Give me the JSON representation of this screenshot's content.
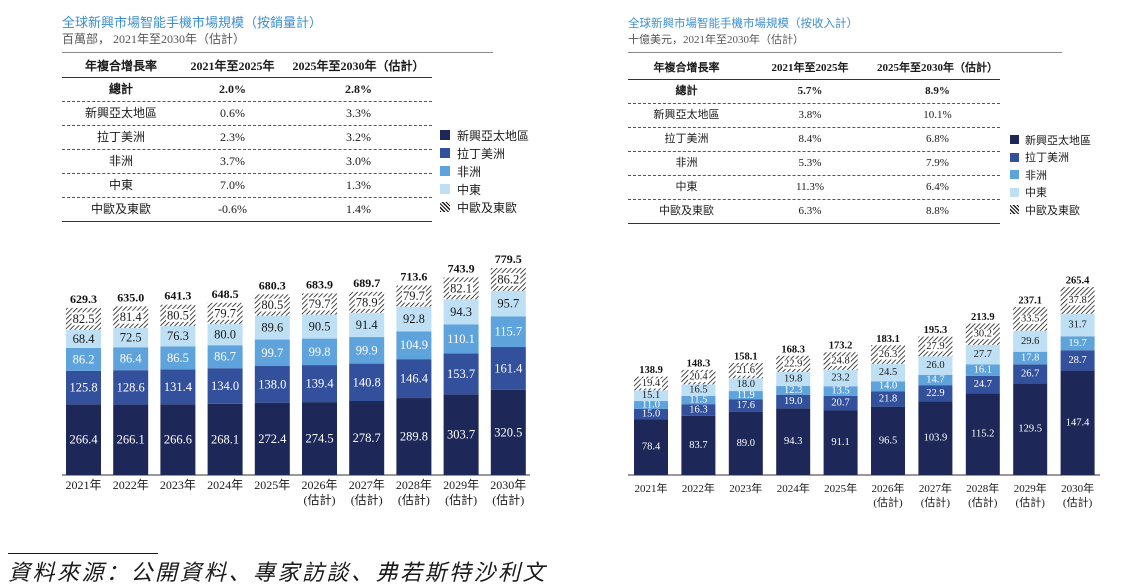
{
  "chart_data": [
    {
      "type": "bar",
      "stacked": true,
      "title": "全球新興市場智能手機市場規模（按銷量計）",
      "subtitle": "百萬部， 2021年至2030年（估計）",
      "legend_position": "right",
      "categories": [
        {
          "year": "2021年"
        },
        {
          "year": "2022年"
        },
        {
          "year": "2023年"
        },
        {
          "year": "2024年"
        },
        {
          "year": "2025年"
        },
        {
          "year": "2026年",
          "note": "(估計)"
        },
        {
          "year": "2027年",
          "note": "(估計)"
        },
        {
          "year": "2028年",
          "note": "(估計)"
        },
        {
          "year": "2029年",
          "note": "(估計)"
        },
        {
          "year": "2030年",
          "note": "(估計)"
        }
      ],
      "series": [
        {
          "name": "新興亞太地區",
          "color": "#1d2858",
          "label_color": "#ffffff",
          "values": [
            266.4,
            266.1,
            266.6,
            268.1,
            272.4,
            274.5,
            278.7,
            289.8,
            303.7,
            320.5
          ]
        },
        {
          "name": "拉丁美洲",
          "color": "#33509c",
          "label_color": "#ffffff",
          "values": [
            125.8,
            128.6,
            131.4,
            134.0,
            138.0,
            139.4,
            140.8,
            146.4,
            153.7,
            161.4
          ]
        },
        {
          "name": "非洲",
          "color": "#5ea3db",
          "label_color": "#ffffff",
          "values": [
            86.2,
            86.4,
            86.5,
            86.7,
            99.7,
            99.8,
            99.9,
            104.9,
            110.1,
            115.7
          ]
        },
        {
          "name": "中東",
          "color": "#bfe0f4",
          "label_color": "#1a1a1a",
          "values": [
            68.4,
            72.5,
            76.3,
            80.0,
            89.6,
            90.5,
            91.4,
            92.8,
            94.3,
            95.7
          ]
        },
        {
          "name": "中歐及東歐",
          "color": "hatch",
          "label_color": "#1a1a1a",
          "values": [
            82.5,
            81.4,
            80.5,
            79.7,
            80.5,
            79.7,
            78.9,
            79.7,
            82.1,
            86.2
          ]
        }
      ],
      "totals": [
        629.3,
        635.0,
        641.3,
        648.5,
        680.3,
        683.9,
        689.7,
        713.6,
        743.9,
        779.5
      ],
      "cagr_table": {
        "headers": [
          "年複合增長率",
          "2021年至2025年",
          "2025年至2030年（估計）"
        ],
        "rows": [
          [
            "總計",
            "2.0%",
            "2.8%"
          ],
          [
            "新興亞太地區",
            "0.6%",
            "3.3%"
          ],
          [
            "拉丁美洲",
            "2.3%",
            "3.2%"
          ],
          [
            "非洲",
            "3.7%",
            "3.0%"
          ],
          [
            "中東",
            "7.0%",
            "1.3%"
          ],
          [
            "中歐及東歐",
            "-0.6%",
            "1.4%"
          ]
        ]
      }
    },
    {
      "type": "bar",
      "stacked": true,
      "title": "全球新興市場智能手機市場規模（按收入計）",
      "subtitle": "十億美元，2021年至2030年（估計）",
      "legend_position": "right",
      "categories": [
        {
          "year": "2021年"
        },
        {
          "year": "2022年"
        },
        {
          "year": "2023年"
        },
        {
          "year": "2024年"
        },
        {
          "year": "2025年"
        },
        {
          "year": "2026年",
          "note": "(估計)"
        },
        {
          "year": "2027年",
          "note": "(估計)"
        },
        {
          "year": "2028年",
          "note": "(估計)"
        },
        {
          "year": "2029年",
          "note": "(估計)"
        },
        {
          "year": "2030年",
          "note": "(估計)"
        }
      ],
      "series": [
        {
          "name": "新興亞太地區",
          "color": "#1d2858",
          "label_color": "#ffffff",
          "values": [
            78.4,
            83.7,
            89.0,
            94.3,
            91.1,
            96.5,
            103.9,
            115.2,
            129.5,
            147.4
          ]
        },
        {
          "name": "拉丁美洲",
          "color": "#33509c",
          "label_color": "#ffffff",
          "values": [
            15.0,
            16.3,
            17.6,
            19.0,
            20.7,
            21.8,
            22.9,
            24.7,
            26.7,
            28.7
          ]
        },
        {
          "name": "非洲",
          "color": "#5ea3db",
          "label_color": "#ffffff",
          "values": [
            11.0,
            11.5,
            11.9,
            12.3,
            13.5,
            14.0,
            14.7,
            16.1,
            17.8,
            19.7
          ]
        },
        {
          "name": "中東",
          "color": "#bfe0f4",
          "label_color": "#1a1a1a",
          "values": [
            15.1,
            16.5,
            18.0,
            19.8,
            23.2,
            24.5,
            26.0,
            27.7,
            29.6,
            31.7
          ]
        },
        {
          "name": "中歐及東歐",
          "color": "hatch",
          "label_color": "#1a1a1a",
          "values": [
            19.4,
            20.4,
            21.6,
            22.9,
            24.8,
            26.3,
            27.9,
            30.2,
            33.5,
            37.8
          ]
        }
      ],
      "totals": [
        138.9,
        148.3,
        158.1,
        168.3,
        173.2,
        183.1,
        195.3,
        213.9,
        237.1,
        265.4
      ],
      "cagr_table": {
        "headers": [
          "年複合增長率",
          "2021年至2025年",
          "2025年至2030年（估計）"
        ],
        "rows": [
          [
            "總計",
            "5.7%",
            "8.9%"
          ],
          [
            "新興亞太地區",
            "3.8%",
            "10.1%"
          ],
          [
            "拉丁美洲",
            "8.4%",
            "6.8%"
          ],
          [
            "非洲",
            "5.3%",
            "7.9%"
          ],
          [
            "中東",
            "11.3%",
            "6.4%"
          ],
          [
            "中歐及東歐",
            "6.3%",
            "8.8%"
          ]
        ]
      }
    }
  ],
  "footer": {
    "source": "資料來源：公開資料、專家訪談、弗若斯特沙利文"
  }
}
